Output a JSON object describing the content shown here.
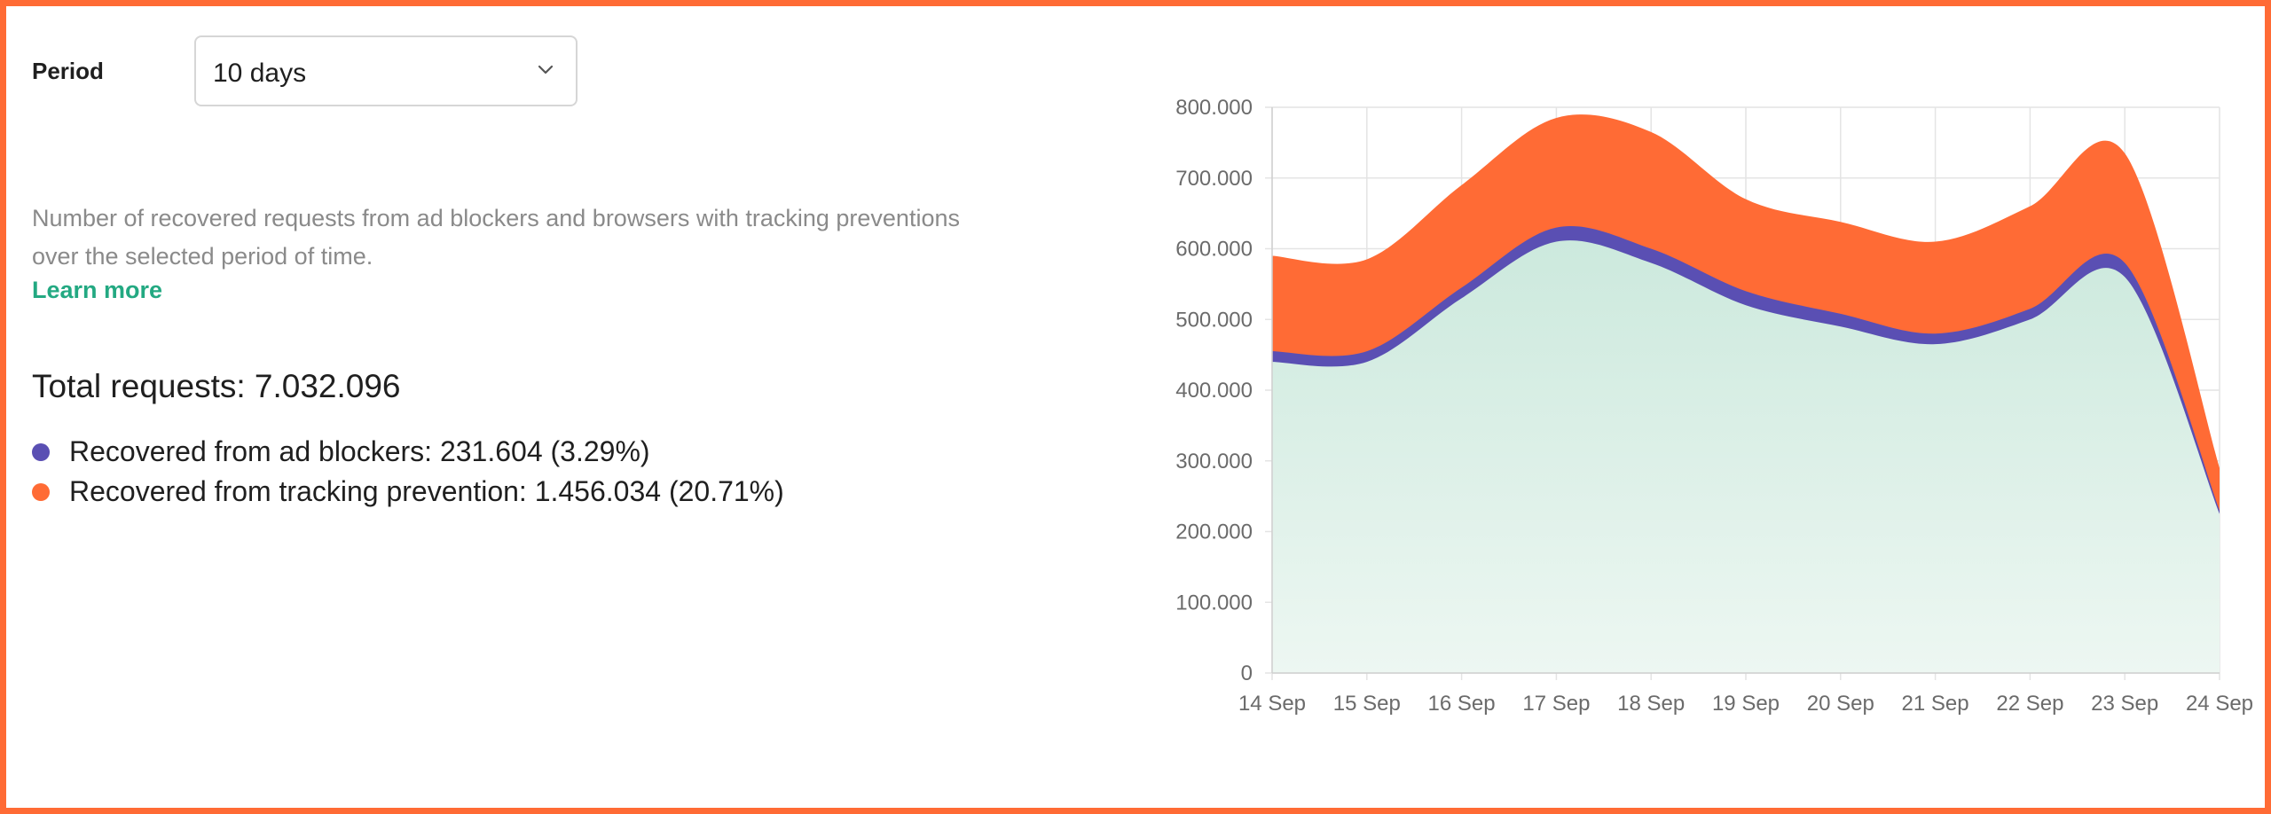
{
  "filters": {
    "period_label": "Period",
    "period_value": "10 days"
  },
  "description": "Number of recovered requests from ad blockers and browsers with tracking preventions over the selected period of time.",
  "learn_more": "Learn more",
  "summary": {
    "total": "Total requests: 7.032.096",
    "ad_blockers": "Recovered from ad blockers: 231.604 (3.29%)",
    "tracking_prevention": "Recovered from tracking prevention: 1.456.034 (20.71%)"
  },
  "colors": {
    "ad_blockers": "#5a4fb3",
    "tracking_prevention": "#ff6b35",
    "base_area": "#d2ece2",
    "link": "#23a982"
  },
  "icons": {
    "select": "chevron-down-icon"
  },
  "chart_data": {
    "type": "area",
    "stacked": true,
    "x": [
      "14 Sep",
      "15 Sep",
      "16 Sep",
      "17 Sep",
      "18 Sep",
      "19 Sep",
      "20 Sep",
      "21 Sep",
      "22 Sep",
      "23 Sep",
      "24 Sep"
    ],
    "series": [
      {
        "values": [
          440000,
          440000,
          530000,
          610000,
          580000,
          520000,
          490000,
          465000,
          500000,
          560000,
          225000
        ]
      },
      {
        "values": [
          15000,
          15000,
          15000,
          20000,
          20000,
          20000,
          18000,
          15000,
          15000,
          20000,
          5000
        ]
      },
      {
        "values": [
          135000,
          130000,
          145000,
          155000,
          165000,
          130000,
          130000,
          130000,
          145000,
          155000,
          60000
        ]
      }
    ],
    "ylim": [
      0,
      800000
    ],
    "yticks": [
      "0",
      "100.000",
      "200.000",
      "300.000",
      "400.000",
      "500.000",
      "600.000",
      "700.000",
      "800.000"
    ],
    "grid": true
  }
}
